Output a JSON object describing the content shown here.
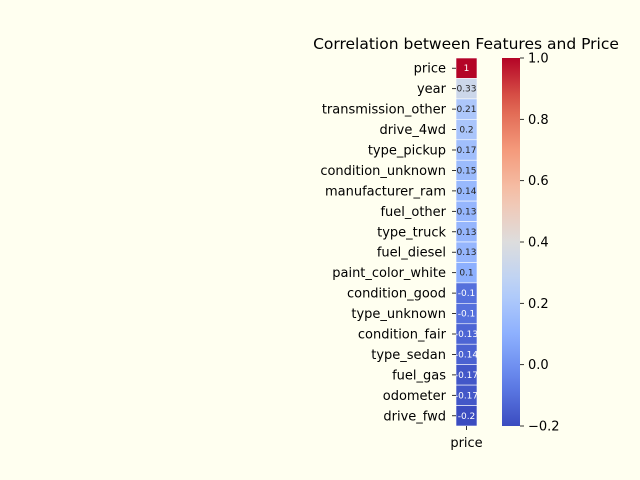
{
  "chart_data": {
    "type": "heatmap",
    "title": "Correlation between Features and Price",
    "columns": [
      "price"
    ],
    "rows": [
      "price",
      "year",
      "transmission_other",
      "drive_4wd",
      "type_pickup",
      "condition_unknown",
      "manufacturer_ram",
      "fuel_other",
      "type_truck",
      "fuel_diesel",
      "paint_color_white",
      "condition_good",
      "type_unknown",
      "condition_fair",
      "type_sedan",
      "fuel_gas",
      "odometer",
      "drive_fwd"
    ],
    "values": [
      1,
      0.33,
      0.21,
      0.2,
      0.17,
      0.15,
      0.14,
      0.13,
      0.13,
      0.13,
      0.1,
      -0.1,
      -0.1,
      -0.13,
      -0.14,
      -0.17,
      -0.17,
      -0.2
    ],
    "cell_labels": [
      "1",
      "0.33",
      "0.21",
      "0.2",
      "0.17",
      "0.15",
      "0.14",
      "0.13",
      "0.13",
      "0.13",
      "0.1",
      "-0.1",
      "-0.1",
      "-0.13",
      "-0.14",
      "-0.17",
      "-0.17",
      "-0.2"
    ],
    "colorbar": {
      "colormap": "coolwarm",
      "range": [
        -0.2,
        1.0
      ],
      "ticks": [
        1.0,
        0.8,
        0.6,
        0.4,
        0.2,
        0.0,
        -0.2
      ],
      "tick_labels": [
        "1.0",
        "0.8",
        "0.6",
        "0.4",
        "0.2",
        "0.0",
        "−0.2"
      ]
    },
    "colors": {
      "background": "#fffff0"
    }
  }
}
